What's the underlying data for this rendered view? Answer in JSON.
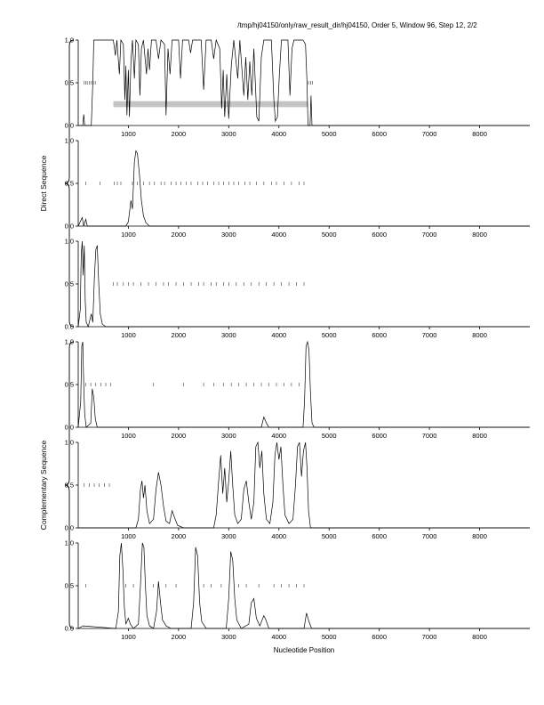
{
  "chart_data": {
    "type": "line",
    "title": "/tmp/hj04150/only/raw_result_dir/hj04150, Order 5, Window 96, Step 12, 2/2",
    "xlabel": "Nucleotide Position",
    "xlim": [
      0,
      9000
    ],
    "ylim": [
      0,
      1
    ],
    "xticks": [
      1000,
      2000,
      3000,
      4000,
      5000,
      6000,
      7000,
      8000
    ],
    "yticks": [
      0.0,
      0.5,
      1.0
    ],
    "legend": "none",
    "grid": false,
    "colors": {
      "line": "#000000",
      "marks": "#3a3a3a",
      "bar": "#c4c4c4"
    },
    "groups": [
      {
        "label": "Direct Sequence",
        "panels": [
          0,
          2
        ]
      },
      {
        "label": "Complementary Sequence",
        "panels": [
          3,
          5
        ]
      }
    ],
    "panels": [
      {
        "name": "direct-frame-1",
        "bar": {
          "x0": 700,
          "x1": 4580,
          "y0": 0.215,
          "y1": 0.285
        },
        "marks": [
          120,
          150,
          180,
          220,
          260,
          300,
          340,
          4590,
          4630,
          4670
        ],
        "curve": [
          [
            0,
            0
          ],
          [
            90,
            0
          ],
          [
            110,
            0.13
          ],
          [
            130,
            0
          ],
          [
            260,
            0
          ],
          [
            290,
            0.5
          ],
          [
            310,
            1
          ],
          [
            700,
            1
          ],
          [
            740,
            0.82
          ],
          [
            770,
            1
          ],
          [
            820,
            0.6
          ],
          [
            850,
            1
          ],
          [
            900,
            0.95
          ],
          [
            930,
            0.3
          ],
          [
            950,
            0.7
          ],
          [
            970,
            0.12
          ],
          [
            1000,
            0.65
          ],
          [
            1020,
            0.1
          ],
          [
            1050,
            0.75
          ],
          [
            1080,
            1
          ],
          [
            1120,
            0.55
          ],
          [
            1150,
            1
          ],
          [
            1200,
            0.95
          ],
          [
            1230,
            0.35
          ],
          [
            1260,
            0.9
          ],
          [
            1300,
            1
          ],
          [
            1360,
            0.6
          ],
          [
            1390,
            0.9
          ],
          [
            1420,
            0.65
          ],
          [
            1460,
            1
          ],
          [
            1550,
            1
          ],
          [
            1600,
            0.78
          ],
          [
            1650,
            1
          ],
          [
            1720,
            0.95
          ],
          [
            1750,
            0.12
          ],
          [
            1790,
            0.9
          ],
          [
            1830,
            0.6
          ],
          [
            1870,
            1
          ],
          [
            2000,
            1
          ],
          [
            2040,
            0.55
          ],
          [
            2080,
            1
          ],
          [
            2200,
            1
          ],
          [
            2240,
            0.85
          ],
          [
            2280,
            1
          ],
          [
            2450,
            1
          ],
          [
            2500,
            0.42
          ],
          [
            2550,
            1
          ],
          [
            2650,
            1
          ],
          [
            2700,
            0.78
          ],
          [
            2750,
            1
          ],
          [
            2820,
            0.9
          ],
          [
            2860,
            0.2
          ],
          [
            2890,
            0.65
          ],
          [
            2920,
            0.1
          ],
          [
            2960,
            0.6
          ],
          [
            3000,
            0.08
          ],
          [
            3050,
            0.7
          ],
          [
            3100,
            1
          ],
          [
            3180,
            0.55
          ],
          [
            3220,
            1
          ],
          [
            3300,
            0.35
          ],
          [
            3340,
            0.8
          ],
          [
            3380,
            0.3
          ],
          [
            3420,
            0.75
          ],
          [
            3460,
            0.35
          ],
          [
            3500,
            0.9
          ],
          [
            3560,
            0.1
          ],
          [
            3600,
            0.05
          ],
          [
            3650,
            0.8
          ],
          [
            3700,
            1
          ],
          [
            3850,
            1
          ],
          [
            3900,
            0.3
          ],
          [
            3930,
            0.05
          ],
          [
            3970,
            0.1
          ],
          [
            4010,
            0.6
          ],
          [
            4050,
            1
          ],
          [
            4180,
            1
          ],
          [
            4220,
            0.35
          ],
          [
            4260,
            0.9
          ],
          [
            4300,
            1
          ],
          [
            4480,
            1
          ],
          [
            4530,
            0.95
          ],
          [
            4560,
            0.5
          ],
          [
            4580,
            0
          ],
          [
            4620,
            0
          ],
          [
            4640,
            0.35
          ],
          [
            4660,
            0
          ],
          [
            9000,
            0
          ]
        ]
      },
      {
        "name": "direct-frame-2",
        "marks": [
          150,
          430,
          720,
          780,
          850,
          1080,
          1180,
          1300,
          1420,
          1520,
          1650,
          1720,
          1850,
          1950,
          2050,
          2150,
          2250,
          2380,
          2480,
          2580,
          2700,
          2800,
          2900,
          3000,
          3100,
          3200,
          3320,
          3420,
          3550,
          3700,
          3850,
          3950,
          4100,
          4250,
          4400,
          4500
        ],
        "curve": [
          [
            0,
            0
          ],
          [
            80,
            0.1
          ],
          [
            110,
            0
          ],
          [
            150,
            0.08
          ],
          [
            180,
            0
          ],
          [
            950,
            0
          ],
          [
            1000,
            0.05
          ],
          [
            1050,
            0.3
          ],
          [
            1080,
            0.2
          ],
          [
            1120,
            0.75
          ],
          [
            1150,
            0.88
          ],
          [
            1180,
            0.85
          ],
          [
            1220,
            0.6
          ],
          [
            1260,
            0.3
          ],
          [
            1300,
            0.12
          ],
          [
            1350,
            0.04
          ],
          [
            1420,
            0
          ],
          [
            9000,
            0
          ]
        ]
      },
      {
        "name": "direct-frame-3",
        "marks": [
          700,
          780,
          900,
          1000,
          1100,
          1250,
          1400,
          1550,
          1700,
          1800,
          1950,
          2100,
          2250,
          2400,
          2500,
          2650,
          2750,
          2900,
          3000,
          3150,
          3300,
          3450,
          3600,
          3750,
          3900,
          4050,
          4200,
          4350,
          4500
        ],
        "curve": [
          [
            0,
            0
          ],
          [
            40,
            0.2
          ],
          [
            60,
            0.85
          ],
          [
            80,
            1
          ],
          [
            100,
            0.6
          ],
          [
            120,
            0.95
          ],
          [
            140,
            0.3
          ],
          [
            160,
            0.05
          ],
          [
            200,
            0
          ],
          [
            260,
            0.15
          ],
          [
            290,
            0.05
          ],
          [
            320,
            0.55
          ],
          [
            350,
            0.9
          ],
          [
            380,
            0.95
          ],
          [
            410,
            0.5
          ],
          [
            440,
            0.15
          ],
          [
            480,
            0.03
          ],
          [
            550,
            0
          ],
          [
            9000,
            0
          ]
        ]
      },
      {
        "name": "complementary-frame-1",
        "marks": [
          150,
          250,
          350,
          450,
          550,
          650,
          1500,
          2100,
          2500,
          2700,
          2900,
          3050,
          3200,
          3350,
          3500,
          3650,
          3800,
          3950,
          4100,
          4250,
          4400
        ],
        "curve": [
          [
            0,
            0
          ],
          [
            50,
            0.3
          ],
          [
            70,
            0.95
          ],
          [
            90,
            1
          ],
          [
            110,
            0.5
          ],
          [
            130,
            0.15
          ],
          [
            160,
            0
          ],
          [
            250,
            0.05
          ],
          [
            280,
            0.45
          ],
          [
            310,
            0.35
          ],
          [
            340,
            0.1
          ],
          [
            380,
            0
          ],
          [
            3650,
            0
          ],
          [
            3700,
            0.12
          ],
          [
            3750,
            0.05
          ],
          [
            3800,
            0
          ],
          [
            4480,
            0
          ],
          [
            4510,
            0.3
          ],
          [
            4540,
            0.95
          ],
          [
            4570,
            1
          ],
          [
            4600,
            0.9
          ],
          [
            4630,
            0.4
          ],
          [
            4660,
            0.05
          ],
          [
            4700,
            0
          ],
          [
            9000,
            0
          ]
        ]
      },
      {
        "name": "complementary-frame-2",
        "marks": [
          120,
          220,
          320,
          420,
          520,
          620
        ],
        "curve": [
          [
            0,
            0
          ],
          [
            1150,
            0
          ],
          [
            1200,
            0.1
          ],
          [
            1240,
            0.45
          ],
          [
            1270,
            0.55
          ],
          [
            1300,
            0.35
          ],
          [
            1330,
            0.5
          ],
          [
            1370,
            0.2
          ],
          [
            1420,
            0.05
          ],
          [
            1500,
            0.1
          ],
          [
            1550,
            0.45
          ],
          [
            1600,
            0.65
          ],
          [
            1650,
            0.5
          ],
          [
            1700,
            0.25
          ],
          [
            1750,
            0.08
          ],
          [
            1820,
            0.05
          ],
          [
            1870,
            0.2
          ],
          [
            1920,
            0.12
          ],
          [
            1980,
            0.03
          ],
          [
            2100,
            0
          ],
          [
            2700,
            0
          ],
          [
            2750,
            0.15
          ],
          [
            2800,
            0.55
          ],
          [
            2840,
            0.85
          ],
          [
            2880,
            0.4
          ],
          [
            2920,
            0.7
          ],
          [
            2960,
            0.3
          ],
          [
            3000,
            0.55
          ],
          [
            3040,
            0.9
          ],
          [
            3080,
            0.5
          ],
          [
            3120,
            0.15
          ],
          [
            3180,
            0.05
          ],
          [
            3250,
            0.1
          ],
          [
            3300,
            0.45
          ],
          [
            3350,
            0.55
          ],
          [
            3400,
            0.3
          ],
          [
            3450,
            0.1
          ],
          [
            3500,
            0.3
          ],
          [
            3540,
            0.95
          ],
          [
            3580,
            1
          ],
          [
            3620,
            0.7
          ],
          [
            3660,
            0.9
          ],
          [
            3700,
            0.4
          ],
          [
            3750,
            0.1
          ],
          [
            3820,
            0.05
          ],
          [
            3880,
            0.3
          ],
          [
            3920,
            0.85
          ],
          [
            3960,
            1
          ],
          [
            4000,
            0.8
          ],
          [
            4040,
            0.95
          ],
          [
            4080,
            0.5
          ],
          [
            4120,
            0.15
          ],
          [
            4200,
            0.05
          ],
          [
            4280,
            0.1
          ],
          [
            4330,
            0.5
          ],
          [
            4370,
            0.95
          ],
          [
            4410,
            1
          ],
          [
            4450,
            0.6
          ],
          [
            4490,
            0.9
          ],
          [
            4530,
            1
          ],
          [
            4560,
            0.7
          ],
          [
            4590,
            0.2
          ],
          [
            4630,
            0
          ],
          [
            9000,
            0
          ]
        ]
      },
      {
        "name": "complementary-frame-3",
        "marks": [
          150,
          950,
          1100,
          1500,
          1750,
          1950,
          2500,
          2650,
          2850,
          3200,
          3350,
          3600,
          3900,
          4050,
          4200,
          4350,
          4500
        ],
        "curve": [
          [
            0,
            0
          ],
          [
            100,
            0.03
          ],
          [
            750,
            0
          ],
          [
            800,
            0.2
          ],
          [
            830,
            0.85
          ],
          [
            860,
            1
          ],
          [
            890,
            0.7
          ],
          [
            920,
            0.25
          ],
          [
            950,
            0.05
          ],
          [
            1000,
            0.12
          ],
          [
            1040,
            0.05
          ],
          [
            1100,
            0
          ],
          [
            1200,
            0.05
          ],
          [
            1240,
            0.5
          ],
          [
            1280,
            1
          ],
          [
            1310,
            0.95
          ],
          [
            1340,
            0.5
          ],
          [
            1370,
            0.15
          ],
          [
            1420,
            0.03
          ],
          [
            1500,
            0
          ],
          [
            1560,
            0.2
          ],
          [
            1600,
            0.55
          ],
          [
            1640,
            0.3
          ],
          [
            1680,
            0.1
          ],
          [
            1750,
            0.03
          ],
          [
            1850,
            0
          ],
          [
            2250,
            0
          ],
          [
            2300,
            0.3
          ],
          [
            2340,
            0.95
          ],
          [
            2380,
            0.85
          ],
          [
            2420,
            0.3
          ],
          [
            2460,
            0.08
          ],
          [
            2550,
            0
          ],
          [
            2950,
            0
          ],
          [
            3000,
            0.35
          ],
          [
            3040,
            0.9
          ],
          [
            3080,
            0.8
          ],
          [
            3120,
            0.35
          ],
          [
            3160,
            0.1
          ],
          [
            3250,
            0
          ],
          [
            3400,
            0.05
          ],
          [
            3450,
            0.3
          ],
          [
            3500,
            0.35
          ],
          [
            3550,
            0.12
          ],
          [
            3620,
            0.03
          ],
          [
            3700,
            0.15
          ],
          [
            3740,
            0.1
          ],
          [
            3800,
            0
          ],
          [
            4500,
            0
          ],
          [
            4550,
            0.18
          ],
          [
            4600,
            0.08
          ],
          [
            4650,
            0
          ],
          [
            9000,
            0
          ]
        ]
      }
    ]
  }
}
